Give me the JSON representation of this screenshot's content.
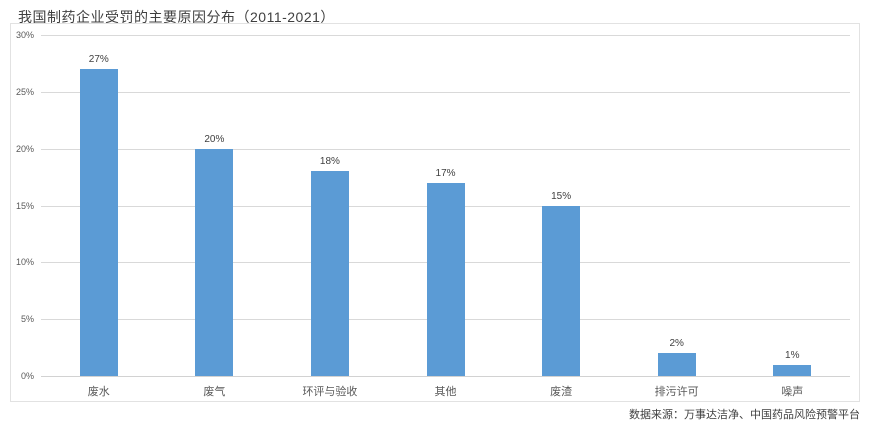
{
  "page": {
    "title": "我国制药企业受罚的主要原因分布（2011-2021）",
    "source": "数据来源：万事达洁净、中国药品风险预警平台"
  },
  "chart_data": {
    "type": "bar",
    "title": "我国制药企业受罚的主要原因分布（2011-2021）",
    "categories": [
      "废水",
      "废气",
      "环评与验收",
      "其他",
      "废渣",
      "排污许可",
      "噪声"
    ],
    "values": [
      27,
      20,
      18,
      17,
      15,
      2,
      1
    ],
    "value_labels": [
      "27%",
      "20%",
      "18%",
      "17%",
      "15%",
      "2%",
      "1%"
    ],
    "xlabel": "",
    "ylabel": "",
    "ylim": [
      0,
      30
    ],
    "y_ticks": [
      "0%",
      "5%",
      "10%",
      "15%",
      "20%",
      "25%",
      "30%"
    ],
    "grid": "horizontal",
    "legend": "none",
    "source": "数据来源：万事达洁净、中国药品风险预警平台"
  },
  "colors": {
    "bar": "#5B9BD5",
    "gridline": "#D9D9D9",
    "axis_line": "#D2D2D2",
    "panel_border": "#E2E2E2",
    "axis_text": "#595959",
    "title_text": "#3F3F3F",
    "value_label_text": "#404040"
  }
}
